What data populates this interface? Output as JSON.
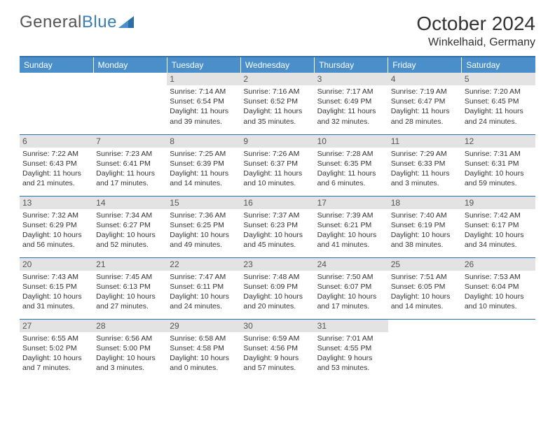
{
  "brand": {
    "part1": "General",
    "part2": "Blue"
  },
  "title": "October 2024",
  "location": "Winkelhaid, Germany",
  "colors": {
    "header_bg": "#4a8fc9",
    "accent_line": "#2c6fa8",
    "daynum_bg": "#e3e3e3",
    "text": "#333333",
    "logo_blue": "#3a7fb5"
  },
  "dayNames": [
    "Sunday",
    "Monday",
    "Tuesday",
    "Wednesday",
    "Thursday",
    "Friday",
    "Saturday"
  ],
  "startOffset": 2,
  "days": [
    {
      "n": 1,
      "sr": "7:14 AM",
      "ss": "6:54 PM",
      "d": "11 hours and 39 minutes."
    },
    {
      "n": 2,
      "sr": "7:16 AM",
      "ss": "6:52 PM",
      "d": "11 hours and 35 minutes."
    },
    {
      "n": 3,
      "sr": "7:17 AM",
      "ss": "6:49 PM",
      "d": "11 hours and 32 minutes."
    },
    {
      "n": 4,
      "sr": "7:19 AM",
      "ss": "6:47 PM",
      "d": "11 hours and 28 minutes."
    },
    {
      "n": 5,
      "sr": "7:20 AM",
      "ss": "6:45 PM",
      "d": "11 hours and 24 minutes."
    },
    {
      "n": 6,
      "sr": "7:22 AM",
      "ss": "6:43 PM",
      "d": "11 hours and 21 minutes."
    },
    {
      "n": 7,
      "sr": "7:23 AM",
      "ss": "6:41 PM",
      "d": "11 hours and 17 minutes."
    },
    {
      "n": 8,
      "sr": "7:25 AM",
      "ss": "6:39 PM",
      "d": "11 hours and 14 minutes."
    },
    {
      "n": 9,
      "sr": "7:26 AM",
      "ss": "6:37 PM",
      "d": "11 hours and 10 minutes."
    },
    {
      "n": 10,
      "sr": "7:28 AM",
      "ss": "6:35 PM",
      "d": "11 hours and 6 minutes."
    },
    {
      "n": 11,
      "sr": "7:29 AM",
      "ss": "6:33 PM",
      "d": "11 hours and 3 minutes."
    },
    {
      "n": 12,
      "sr": "7:31 AM",
      "ss": "6:31 PM",
      "d": "10 hours and 59 minutes."
    },
    {
      "n": 13,
      "sr": "7:32 AM",
      "ss": "6:29 PM",
      "d": "10 hours and 56 minutes."
    },
    {
      "n": 14,
      "sr": "7:34 AM",
      "ss": "6:27 PM",
      "d": "10 hours and 52 minutes."
    },
    {
      "n": 15,
      "sr": "7:36 AM",
      "ss": "6:25 PM",
      "d": "10 hours and 49 minutes."
    },
    {
      "n": 16,
      "sr": "7:37 AM",
      "ss": "6:23 PM",
      "d": "10 hours and 45 minutes."
    },
    {
      "n": 17,
      "sr": "7:39 AM",
      "ss": "6:21 PM",
      "d": "10 hours and 41 minutes."
    },
    {
      "n": 18,
      "sr": "7:40 AM",
      "ss": "6:19 PM",
      "d": "10 hours and 38 minutes."
    },
    {
      "n": 19,
      "sr": "7:42 AM",
      "ss": "6:17 PM",
      "d": "10 hours and 34 minutes."
    },
    {
      "n": 20,
      "sr": "7:43 AM",
      "ss": "6:15 PM",
      "d": "10 hours and 31 minutes."
    },
    {
      "n": 21,
      "sr": "7:45 AM",
      "ss": "6:13 PM",
      "d": "10 hours and 27 minutes."
    },
    {
      "n": 22,
      "sr": "7:47 AM",
      "ss": "6:11 PM",
      "d": "10 hours and 24 minutes."
    },
    {
      "n": 23,
      "sr": "7:48 AM",
      "ss": "6:09 PM",
      "d": "10 hours and 20 minutes."
    },
    {
      "n": 24,
      "sr": "7:50 AM",
      "ss": "6:07 PM",
      "d": "10 hours and 17 minutes."
    },
    {
      "n": 25,
      "sr": "7:51 AM",
      "ss": "6:05 PM",
      "d": "10 hours and 14 minutes."
    },
    {
      "n": 26,
      "sr": "7:53 AM",
      "ss": "6:04 PM",
      "d": "10 hours and 10 minutes."
    },
    {
      "n": 27,
      "sr": "6:55 AM",
      "ss": "5:02 PM",
      "d": "10 hours and 7 minutes."
    },
    {
      "n": 28,
      "sr": "6:56 AM",
      "ss": "5:00 PM",
      "d": "10 hours and 3 minutes."
    },
    {
      "n": 29,
      "sr": "6:58 AM",
      "ss": "4:58 PM",
      "d": "10 hours and 0 minutes."
    },
    {
      "n": 30,
      "sr": "6:59 AM",
      "ss": "4:56 PM",
      "d": "9 hours and 57 minutes."
    },
    {
      "n": 31,
      "sr": "7:01 AM",
      "ss": "4:55 PM",
      "d": "9 hours and 53 minutes."
    }
  ]
}
